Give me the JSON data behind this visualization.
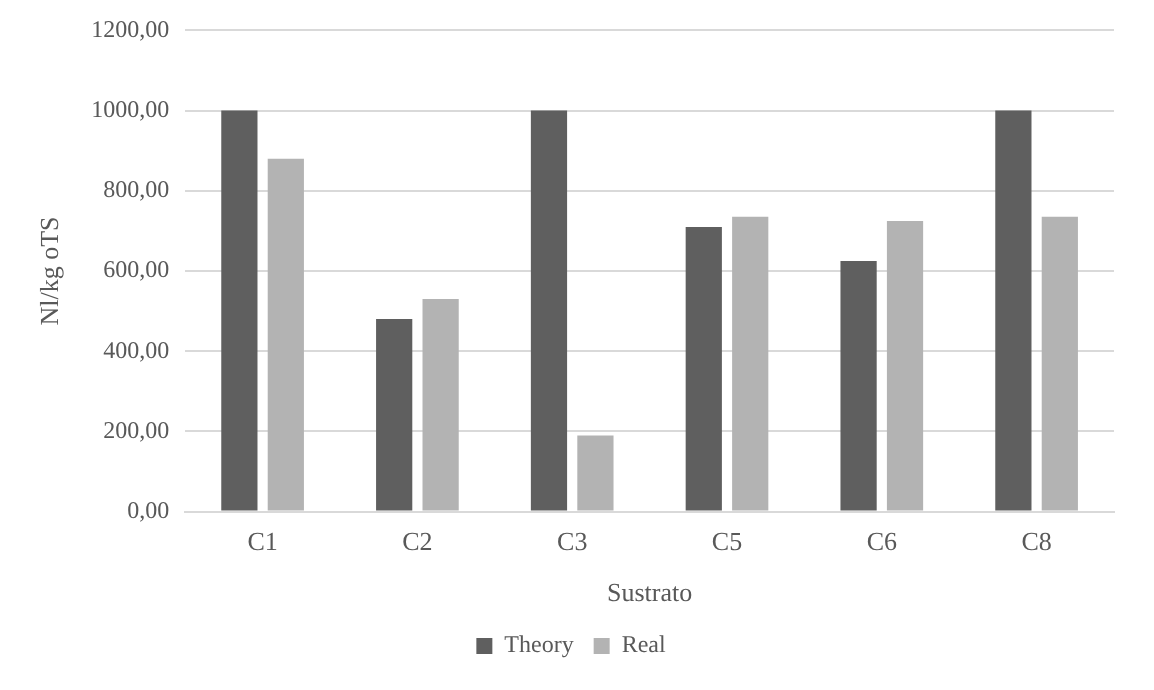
{
  "chart_data": {
    "type": "bar",
    "xlabel": "Sustrato",
    "ylabel": "Nl/kg oTS",
    "categories": [
      "C1",
      "C2",
      "C3",
      "C5",
      "C6",
      "C8"
    ],
    "series": [
      {
        "name": "Theory",
        "color": "#5f5f5f",
        "values": [
          1000,
          480,
          1000,
          710,
          625,
          1000
        ]
      },
      {
        "name": "Real",
        "color": "#b3b3b3",
        "values": [
          880,
          530,
          190,
          735,
          725,
          735
        ]
      }
    ],
    "ylim": [
      0,
      1200
    ],
    "yticks": [
      {
        "value": 0,
        "label": "0,00"
      },
      {
        "value": 200,
        "label": "200,00"
      },
      {
        "value": 400,
        "label": "400,00"
      },
      {
        "value": 600,
        "label": "600,00"
      },
      {
        "value": 800,
        "label": "800,00"
      },
      {
        "value": 1000,
        "label": "1000,00"
      },
      {
        "value": 1200,
        "label": "1200,00"
      }
    ],
    "grid": "y",
    "legend": "bottom"
  }
}
